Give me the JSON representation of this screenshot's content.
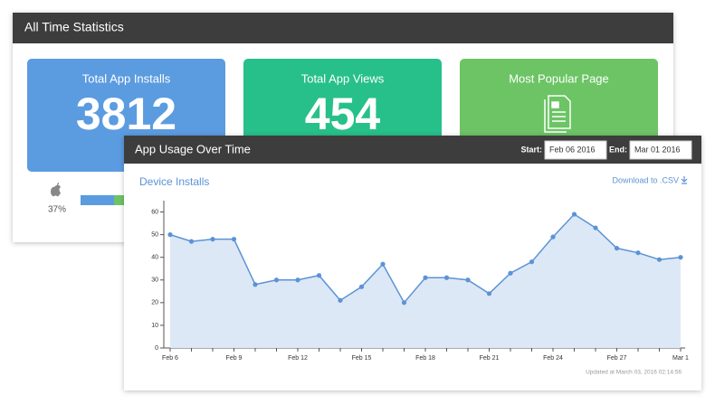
{
  "dashboard": {
    "title": "All Time Statistics",
    "tiles": [
      {
        "label": "Total App Installs",
        "value": 3812
      },
      {
        "label": "Total App Views",
        "value": 454
      },
      {
        "label": "Most Popular Page"
      }
    ],
    "platform_share": {
      "value": 37,
      "label": "37%"
    }
  },
  "usage": {
    "title": "App Usage Over Time",
    "start_label": "Start:",
    "start": "Feb 06 2016",
    "end_label": "End:",
    "end": "Mar 01 2016",
    "download": "Download to .CSV",
    "updated": "Updated at March 03, 2016 02:14:56",
    "chart_data": {
      "type": "line",
      "title": "Device Installs",
      "categories": [
        "Feb 6",
        null,
        null,
        "Feb 9",
        null,
        null,
        "Feb 12",
        null,
        null,
        "Feb 15",
        null,
        null,
        "Feb 18",
        null,
        null,
        "Feb 21",
        null,
        null,
        "Feb 24",
        null,
        null,
        "Feb 27",
        null,
        null,
        "Mar 1"
      ],
      "values": [
        50,
        47,
        48,
        48,
        28,
        30,
        30,
        32,
        21,
        27,
        37,
        20,
        31,
        31,
        30,
        24,
        33,
        38,
        49,
        59,
        53,
        44,
        42,
        39,
        40
      ],
      "color": "#5b93d6",
      "fill": "#dde8f6",
      "ylim": [
        0,
        65
      ],
      "yticks": [
        0,
        10,
        20,
        30,
        40,
        50,
        60
      ]
    }
  }
}
